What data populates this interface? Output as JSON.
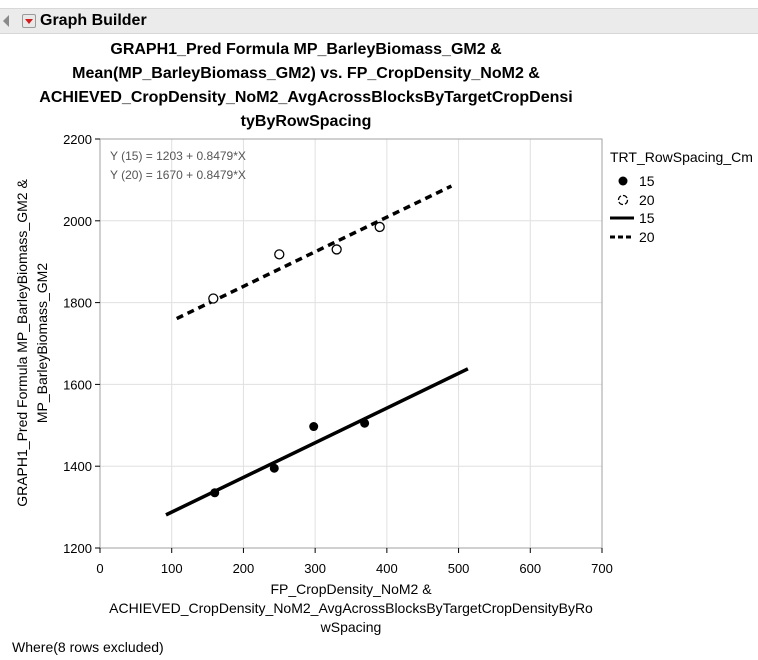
{
  "window": {
    "title": "Graph Builder",
    "footer_note": "Where(8 rows excluded)"
  },
  "chart_data": {
    "type": "scatter",
    "title_lines": [
      "GRAPH1_Pred Formula MP_BarleyBiomass_GM2 &",
      "Mean(MP_BarleyBiomass_GM2) vs. FP_CropDensity_NoM2 &",
      "ACHIEVED_CropDensity_NoM2_AvgAcrossBlocksByTargetCropDensi",
      "tyByRowSpacing"
    ],
    "xlabel_lines": [
      "FP_CropDensity_NoM2 &",
      "ACHIEVED_CropDensity_NoM2_AvgAcrossBlocksByTargetCropDensityByRo",
      "wSpacing"
    ],
    "ylabel_lines": [
      "GRAPH1_Pred Formula MP_BarleyBiomass_GM2 &",
      "MP_BarleyBiomass_GM2"
    ],
    "xlim": [
      0,
      700
    ],
    "ylim": [
      1200,
      2200
    ],
    "xticks": [
      0,
      100,
      200,
      300,
      400,
      500,
      600,
      700
    ],
    "yticks": [
      1200,
      1400,
      1600,
      1800,
      2000,
      2200
    ],
    "grid": true,
    "legend": {
      "title": "TRT_RowSpacing_Cm",
      "position": "right",
      "items": [
        {
          "label": "15",
          "kind": "marker-filled"
        },
        {
          "label": "20",
          "kind": "marker-open"
        },
        {
          "label": "15",
          "kind": "line-solid"
        },
        {
          "label": "20",
          "kind": "line-dashed"
        }
      ]
    },
    "equations": [
      "Y (15) = 1203 + 0.8479*X",
      "Y (20) = 1670 + 0.8479*X"
    ],
    "series": [
      {
        "name": "15",
        "kind": "points",
        "marker": "filled",
        "x": [
          160,
          243,
          298,
          369
        ],
        "y": [
          1335,
          1395,
          1497,
          1505
        ]
      },
      {
        "name": "20",
        "kind": "points",
        "marker": "open",
        "x": [
          158,
          250,
          330,
          390
        ],
        "y": [
          1810,
          1918,
          1930,
          1985
        ]
      },
      {
        "name": "15",
        "kind": "line",
        "style": "solid",
        "x": [
          92,
          513
        ],
        "y": [
          1281,
          1638
        ]
      },
      {
        "name": "20",
        "kind": "line",
        "style": "dashed",
        "x": [
          107,
          490
        ],
        "y": [
          1761,
          2085
        ]
      }
    ],
    "colors": {
      "series": "#000000",
      "grid": "#e0e0e0",
      "frame": "#a0a0a0",
      "equation_text": "#555555"
    }
  }
}
